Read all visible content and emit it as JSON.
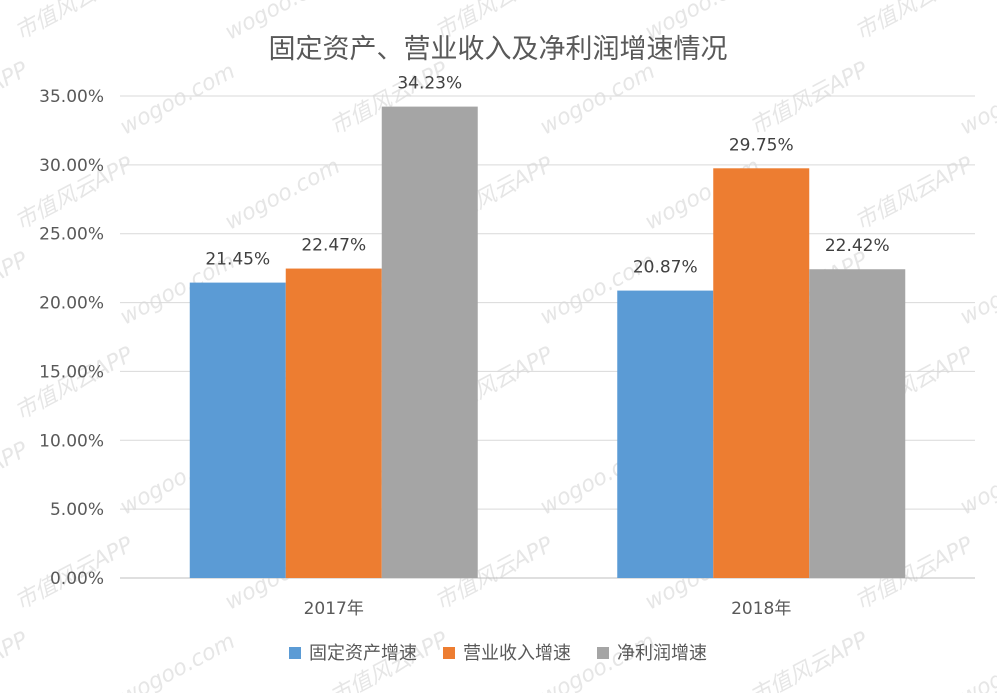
{
  "chart_data": {
    "type": "bar",
    "title": "固定资产、营业收入及净利润增速情况",
    "categories": [
      "2017年",
      "2018年"
    ],
    "series": [
      {
        "name": "固定资产增速",
        "color": "#5b9bd5",
        "values": [
          21.45,
          20.87
        ],
        "labels": [
          "21.45%",
          "20.87%"
        ]
      },
      {
        "name": "营业收入增速",
        "color": "#ed7d31",
        "values": [
          22.47,
          29.75
        ],
        "labels": [
          "22.47%",
          "29.75%"
        ]
      },
      {
        "name": "净利润增速",
        "color": "#a5a5a5",
        "values": [
          34.23,
          22.42
        ],
        "labels": [
          "34.23%",
          "22.42%"
        ]
      }
    ],
    "yticks": [
      0,
      5,
      10,
      15,
      20,
      25,
      30,
      35
    ],
    "ytick_labels": [
      "0.00%",
      "5.00%",
      "10.00%",
      "15.00%",
      "20.00%",
      "25.00%",
      "30.00%",
      "35.00%"
    ],
    "ylim": [
      0,
      35
    ],
    "grid": true,
    "legend_position": "bottom"
  },
  "watermark": {
    "app": "市值风云APP",
    "site": "wogoo.com"
  }
}
